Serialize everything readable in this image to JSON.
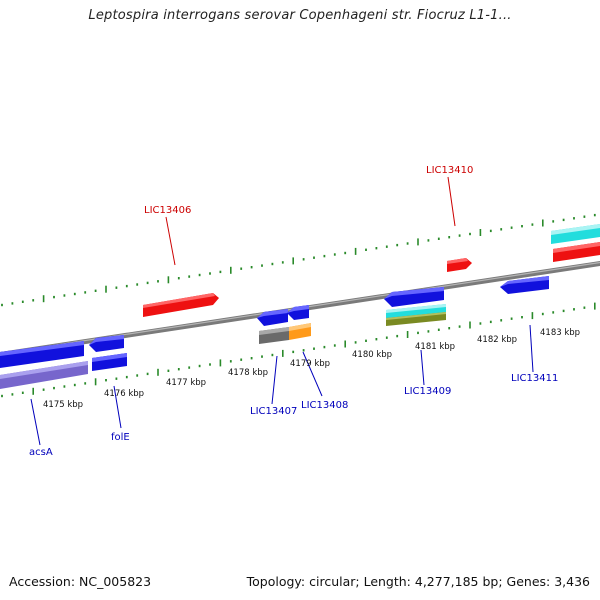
{
  "title": "Leptospira interrogans serovar Copenhageni str. Fiocruz L1-1...",
  "footer": {
    "accession": "Accession: NC_005823",
    "summary": "Topology: circular; Length: 4,277,185 bp; Genes: 3,436"
  },
  "colors": {
    "backbone": "#7a7a7a",
    "tick": "#2a8a2a",
    "forward_label": "#cc0000",
    "reverse_label": "#0000bb",
    "red": "#ee1111",
    "blue": "#1111dd",
    "cyan": "#22dddd",
    "gray": "#6a6a6a",
    "orange": "#ff9a1a",
    "olive": "#7a8a22",
    "purple": "#7766cc"
  },
  "scale_labels": [
    {
      "text": "4175 kbp"
    },
    {
      "text": "4176 kbp"
    },
    {
      "text": "4177 kbp"
    },
    {
      "text": "4178 kbp"
    },
    {
      "text": "4179 kbp"
    },
    {
      "text": "4180 kbp"
    },
    {
      "text": "4181 kbp"
    },
    {
      "text": "4182 kbp"
    },
    {
      "text": "4183 kbp"
    }
  ],
  "gene_labels": [
    {
      "text": "LIC13406",
      "strand": "forward"
    },
    {
      "text": "LIC13410",
      "strand": "forward"
    },
    {
      "text": "acsA",
      "strand": "reverse"
    },
    {
      "text": "folE",
      "strand": "reverse"
    },
    {
      "text": "LIC13407",
      "strand": "reverse"
    },
    {
      "text": "LIC13408",
      "strand": "reverse"
    },
    {
      "text": "LIC13409",
      "strand": "reverse"
    },
    {
      "text": "LIC13411",
      "strand": "reverse"
    }
  ]
}
